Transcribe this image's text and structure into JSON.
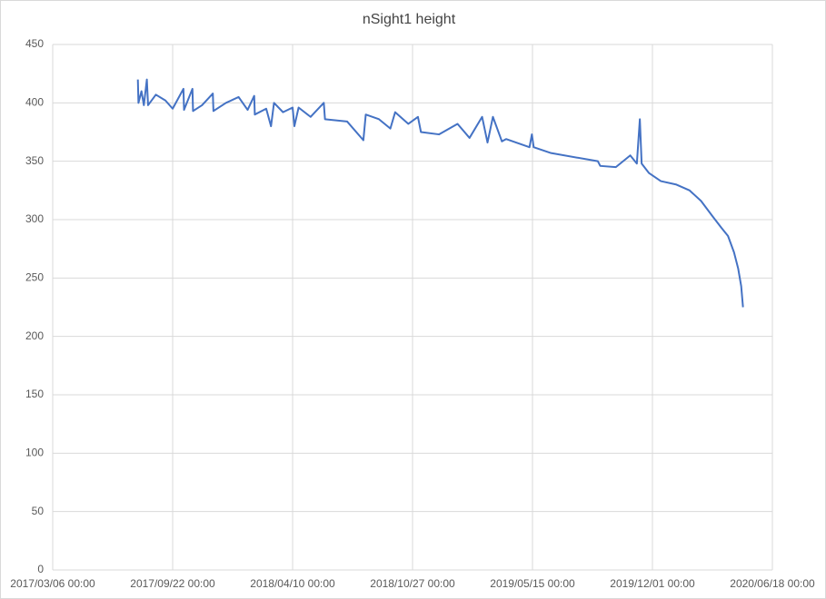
{
  "chart_data": {
    "type": "line",
    "title": "nSight1 height",
    "grid": true,
    "ylim": [
      0,
      450
    ],
    "yticks": [
      0,
      50,
      100,
      150,
      200,
      250,
      300,
      350,
      400,
      450
    ],
    "xlim": [
      "2017-03-06",
      "2020-06-18"
    ],
    "xticks": [
      {
        "value": "2017-03-06",
        "label": "2017/03/06 00:00"
      },
      {
        "value": "2017-09-22",
        "label": "2017/09/22 00:00"
      },
      {
        "value": "2018-04-10",
        "label": "2018/04/10 00:00"
      },
      {
        "value": "2018-10-27",
        "label": "2018/10/27 00:00"
      },
      {
        "value": "2019-05-15",
        "label": "2019/05/15 00:00"
      },
      {
        "value": "2019-12-01",
        "label": "2019/12/01 00:00"
      },
      {
        "value": "2020-06-18",
        "label": "2020/06/18 00:00"
      }
    ],
    "x": [
      "2017-07-26",
      "2017-07-27",
      "2017-08-01",
      "2017-08-05",
      "2017-08-10",
      "2017-08-12",
      "2017-08-25",
      "2017-09-10",
      "2017-09-22",
      "2017-10-10",
      "2017-10-11",
      "2017-10-25",
      "2017-10-26",
      "2017-11-10",
      "2017-11-28",
      "2017-11-29",
      "2017-12-20",
      "2018-01-10",
      "2018-01-25",
      "2018-02-05",
      "2018-02-06",
      "2018-02-25",
      "2018-03-05",
      "2018-03-10",
      "2018-03-25",
      "2018-04-10",
      "2018-04-13",
      "2018-04-20",
      "2018-05-10",
      "2018-06-01",
      "2018-06-03",
      "2018-07-10",
      "2018-08-06",
      "2018-08-10",
      "2018-09-01",
      "2018-09-20",
      "2018-09-28",
      "2018-10-20",
      "2018-11-05",
      "2018-11-10",
      "2018-12-10",
      "2019-01-10",
      "2019-01-30",
      "2019-02-20",
      "2019-03-01",
      "2019-03-10",
      "2019-03-25",
      "2019-04-01",
      "2019-05-10",
      "2019-05-14",
      "2019-05-17",
      "2019-06-15",
      "2019-09-01",
      "2019-09-05",
      "2019-10-01",
      "2019-10-25",
      "2019-11-05",
      "2019-11-10",
      "2019-11-13",
      "2019-11-25",
      "2019-12-15",
      "2020-01-10",
      "2020-02-01",
      "2020-02-20",
      "2020-03-10",
      "2020-03-25",
      "2020-04-05",
      "2020-04-15",
      "2020-04-22",
      "2020-04-27",
      "2020-04-30"
    ],
    "series": [
      {
        "name": "nSight1 height",
        "color": "#4472c4",
        "values": [
          420,
          400,
          410,
          398,
          420,
          398,
          407,
          402,
          395,
          412,
          394,
          412,
          393,
          398,
          408,
          393,
          400,
          405,
          394,
          406,
          390,
          395,
          380,
          400,
          392,
          396,
          380,
          396,
          388,
          400,
          386,
          384,
          368,
          390,
          386,
          378,
          392,
          382,
          388,
          375,
          373,
          382,
          370,
          388,
          366,
          388,
          367,
          369,
          362,
          373,
          362,
          357,
          350,
          346,
          345,
          355,
          348,
          386,
          348,
          340,
          333,
          330,
          325,
          316,
          303,
          293,
          286,
          272,
          258,
          243,
          225
        ]
      }
    ]
  }
}
